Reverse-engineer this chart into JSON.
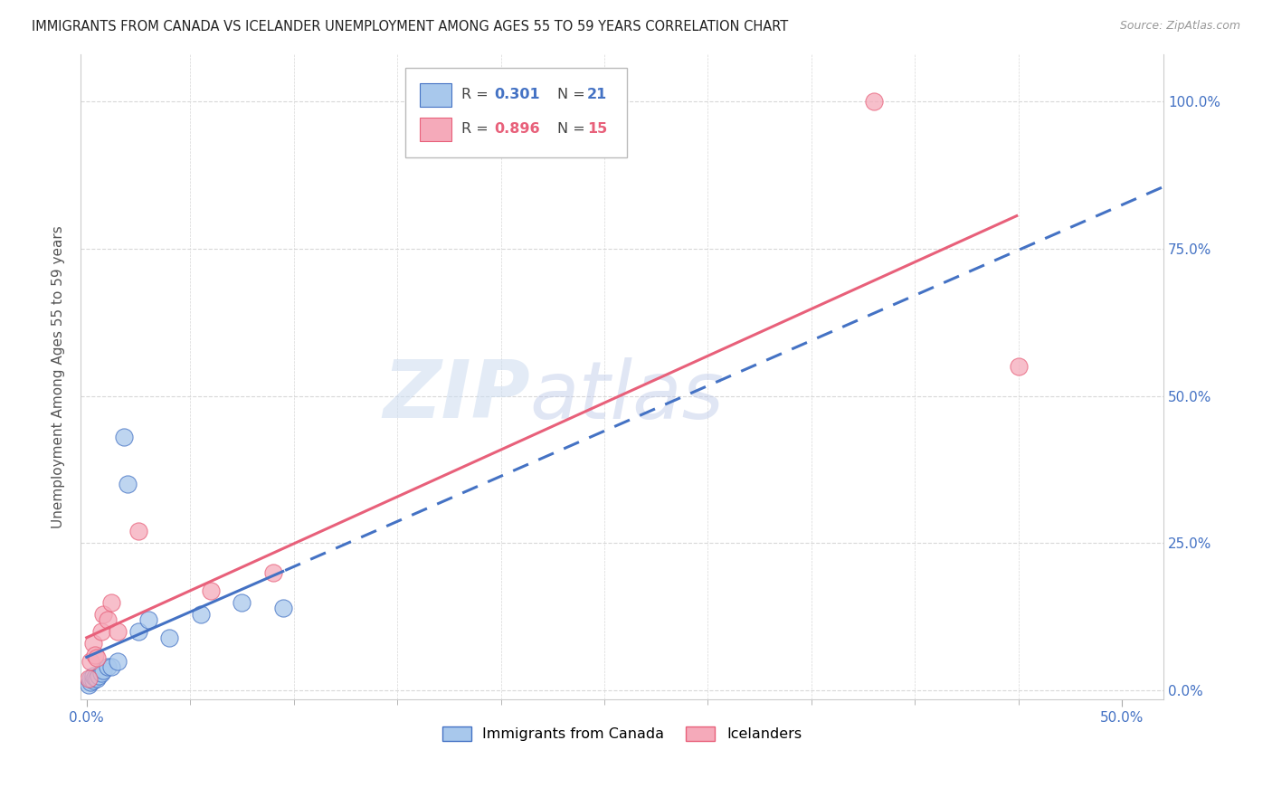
{
  "title": "IMMIGRANTS FROM CANADA VS ICELANDER UNEMPLOYMENT AMONG AGES 55 TO 59 YEARS CORRELATION CHART",
  "source": "Source: ZipAtlas.com",
  "ylabel": "Unemployment Among Ages 55 to 59 years",
  "xlim": [
    -0.003,
    0.52
  ],
  "ylim": [
    -0.015,
    1.08
  ],
  "xtick_left": 0.0,
  "xtick_right": 0.5,
  "yticks": [
    0.0,
    0.25,
    0.5,
    0.75,
    1.0
  ],
  "canada_R": 0.301,
  "canada_N": 21,
  "iceland_R": 0.896,
  "iceland_N": 15,
  "canada_color": "#a8c8ec",
  "iceland_color": "#f5aaba",
  "canada_line_color": "#4472C4",
  "iceland_line_color": "#E8607A",
  "canada_x": [
    0.001,
    0.002,
    0.002,
    0.003,
    0.003,
    0.004,
    0.005,
    0.006,
    0.007,
    0.008,
    0.01,
    0.012,
    0.015,
    0.018,
    0.02,
    0.025,
    0.03,
    0.04,
    0.055,
    0.075,
    0.095
  ],
  "canada_y": [
    0.01,
    0.015,
    0.02,
    0.018,
    0.025,
    0.022,
    0.02,
    0.025,
    0.03,
    0.035,
    0.04,
    0.04,
    0.05,
    0.43,
    0.35,
    0.1,
    0.12,
    0.09,
    0.13,
    0.15,
    0.14
  ],
  "iceland_x": [
    0.001,
    0.002,
    0.003,
    0.004,
    0.005,
    0.007,
    0.008,
    0.01,
    0.012,
    0.015,
    0.025,
    0.06,
    0.09,
    0.38,
    0.45
  ],
  "iceland_y": [
    0.02,
    0.05,
    0.08,
    0.06,
    0.055,
    0.1,
    0.13,
    0.12,
    0.15,
    0.1,
    0.27,
    0.17,
    0.2,
    1.0,
    0.55
  ],
  "background_color": "#ffffff",
  "grid_color": "#d8d8d8",
  "minor_tick_count": 9
}
